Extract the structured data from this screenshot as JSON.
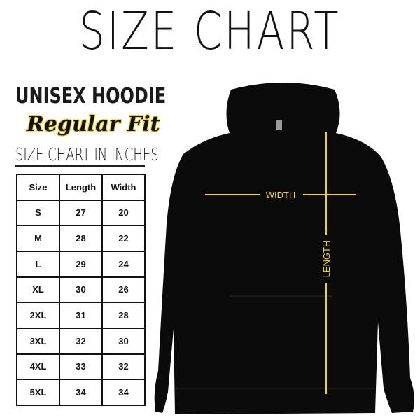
{
  "title": "SIZE CHART",
  "product": "UNISEX HOODIE",
  "fit": "Regular Fit",
  "subtitle": "SIZE CHART IN INCHES",
  "table": {
    "headers": [
      "Size",
      "Length",
      "Width"
    ],
    "rows": [
      [
        "S",
        "27",
        "20"
      ],
      [
        "M",
        "28",
        "22"
      ],
      [
        "L",
        "29",
        "24"
      ],
      [
        "XL",
        "30",
        "26"
      ],
      [
        "2XL",
        "31",
        "28"
      ],
      [
        "3XL",
        "32",
        "30"
      ],
      [
        "4XL",
        "33",
        "32"
      ],
      [
        "5XL",
        "34",
        "34"
      ]
    ]
  },
  "diagram": {
    "width_label": "WIDTH",
    "length_label": "LENGTH",
    "line_color": "#f2d320",
    "garment_color": "#0b0b0b"
  }
}
